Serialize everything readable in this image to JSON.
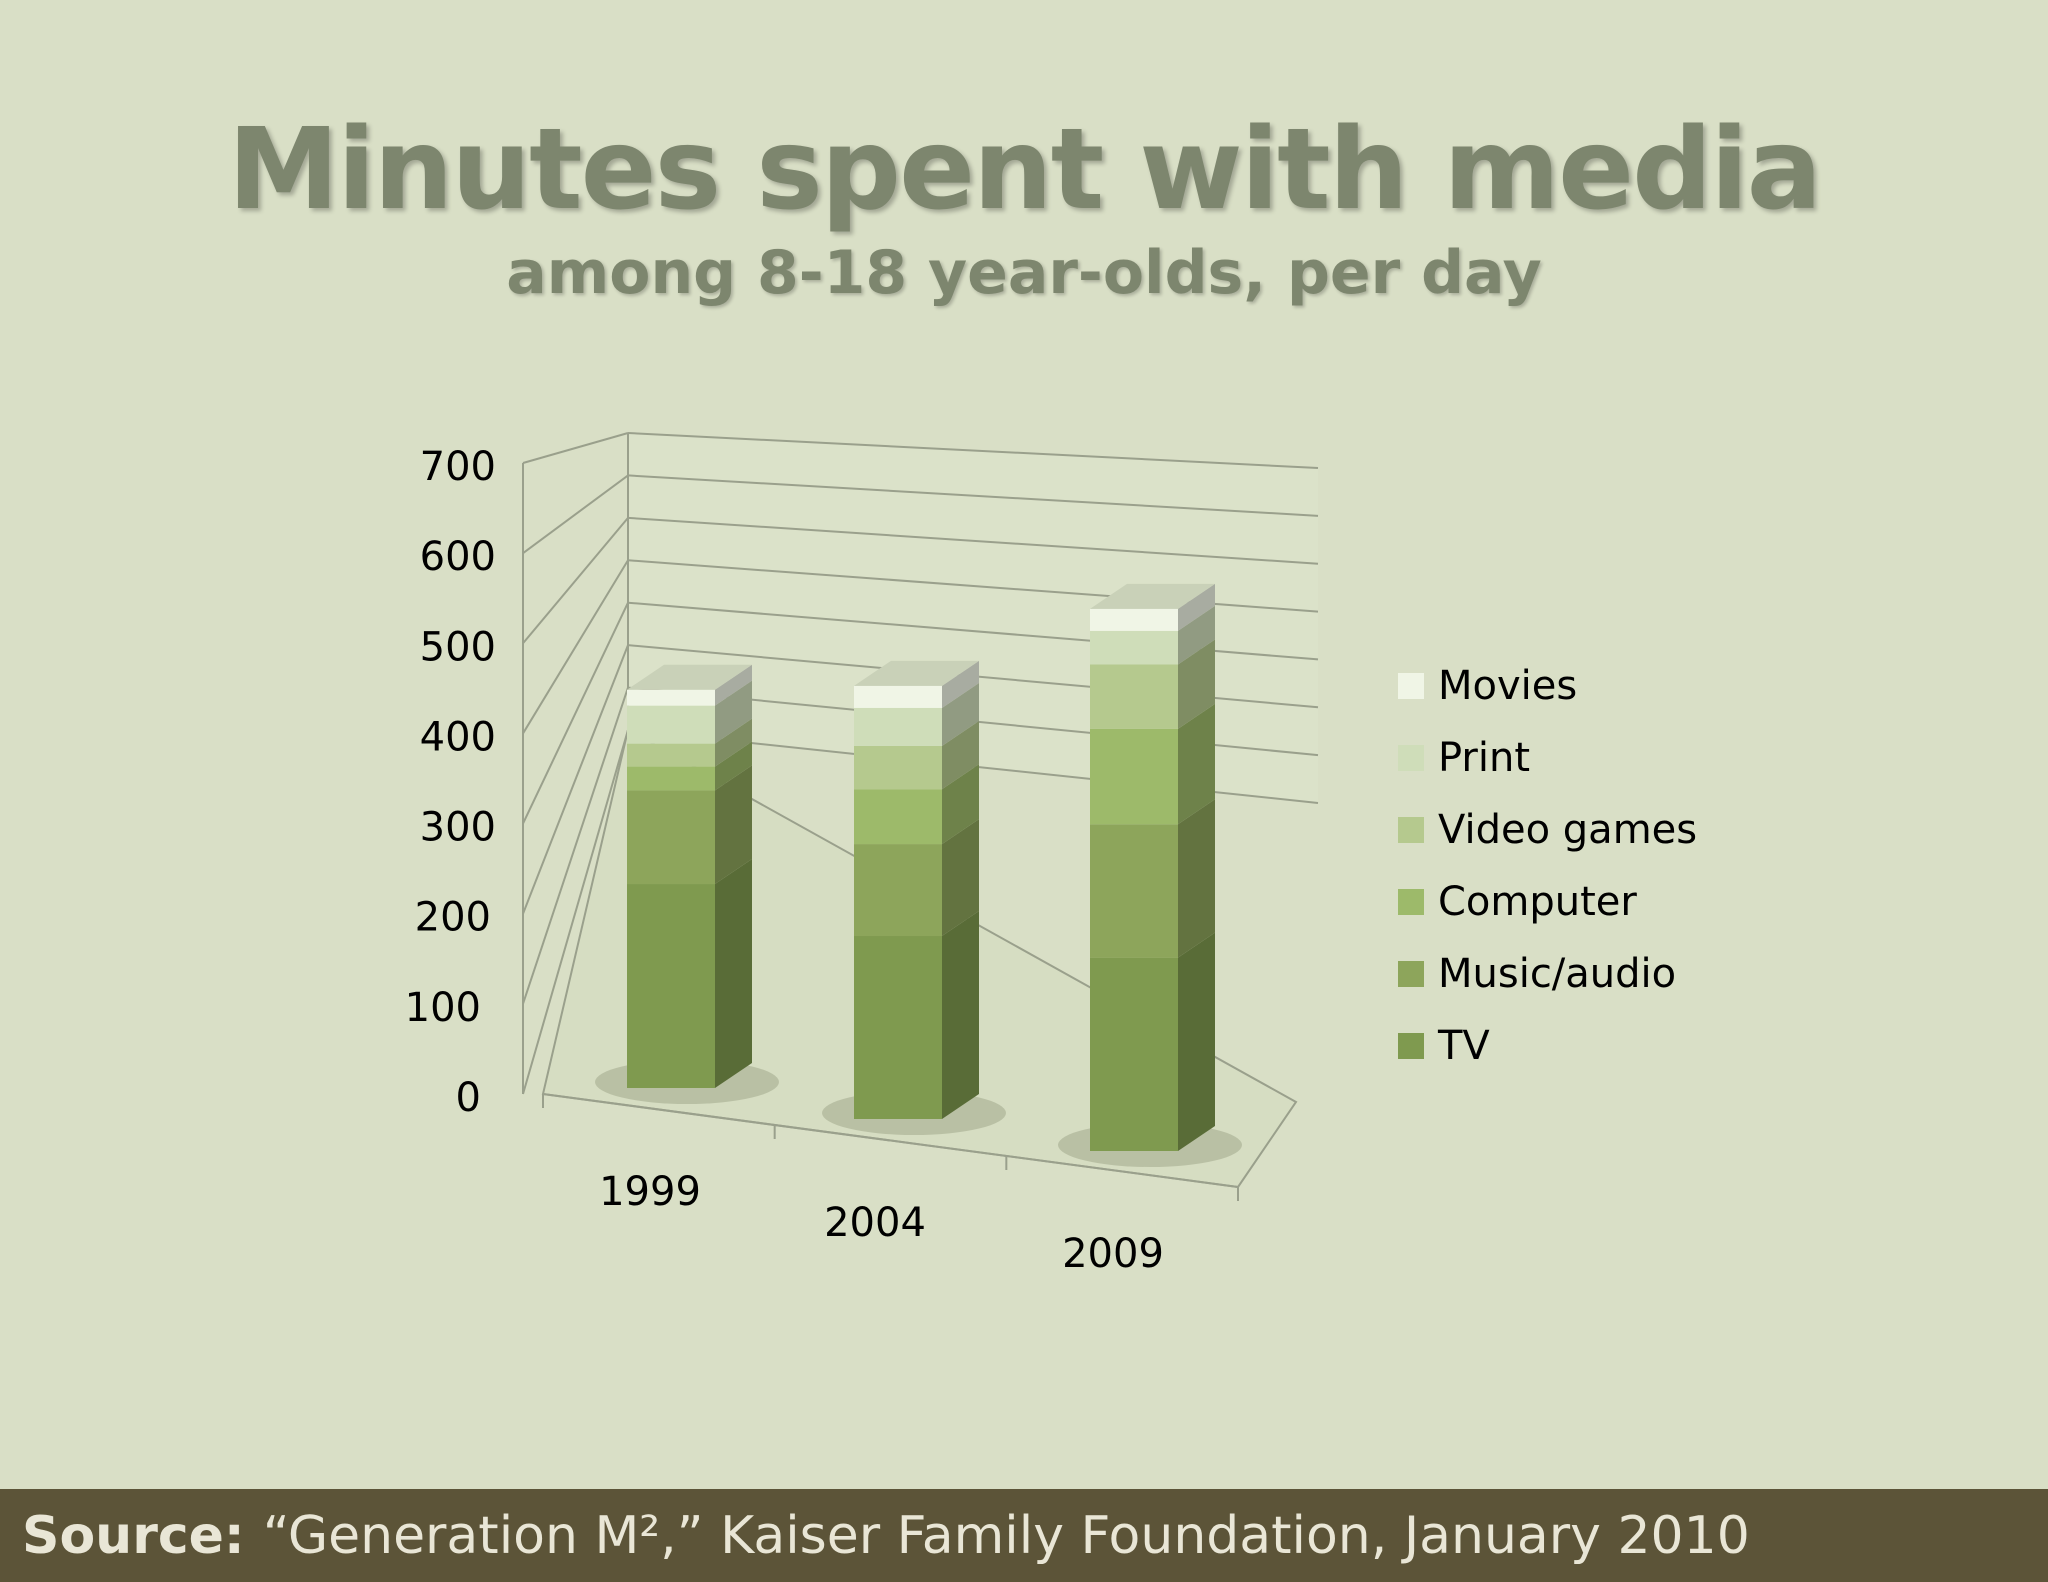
{
  "chart_data": {
    "type": "bar",
    "stacked": true,
    "title": "Minutes spent with media",
    "subtitle": "among 8-18 year-olds, per day",
    "categories": [
      "1999",
      "2004",
      "2009"
    ],
    "series": [
      {
        "name": "TV",
        "values": [
          231,
          207,
          219
        ],
        "color": "#7f9a4f"
      },
      {
        "name": "Music/audio",
        "values": [
          106,
          104,
          151
        ],
        "color": "#8da55b"
      },
      {
        "name": "Computer",
        "values": [
          27,
          62,
          108
        ],
        "color": "#9dba6a"
      },
      {
        "name": "Video games",
        "values": [
          26,
          49,
          73
        ],
        "color": "#b5c98e"
      },
      {
        "name": "Print",
        "values": [
          43,
          43,
          38
        ],
        "color": "#cfddb9"
      },
      {
        "name": "Movies",
        "values": [
          18,
          25,
          25
        ],
        "color": "#f0f5e6"
      }
    ],
    "ylim": [
      0,
      700
    ],
    "yticks": [
      "0",
      "100",
      "200",
      "300",
      "400",
      "500",
      "600",
      "700"
    ],
    "grid": true,
    "legend_position": "right"
  },
  "footer": {
    "label": "Source:",
    "text": "“Generation M²,” Kaiser Family Foundation, January 2010"
  }
}
